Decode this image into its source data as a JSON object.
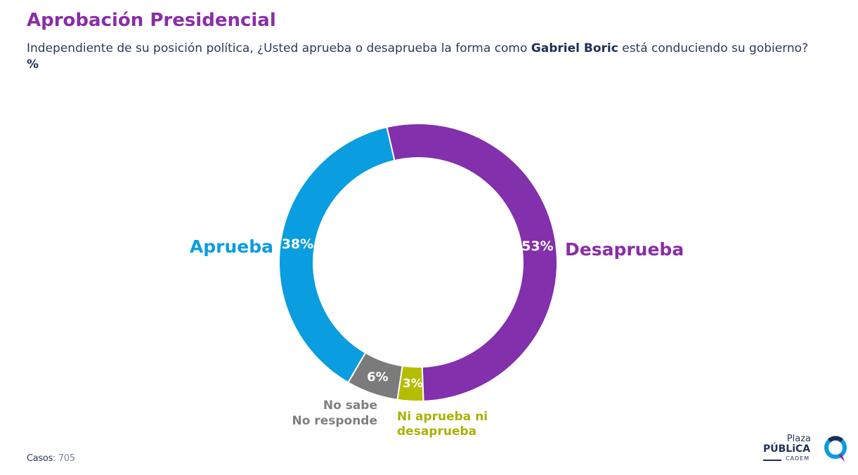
{
  "header": {
    "title": "Aprobación Presidencial",
    "subtitle_pre": "Independiente de su posición política, ¿Usted aprueba o desaprueba la forma como ",
    "subtitle_name": "Gabriel Boric",
    "subtitle_post": " está conduciendo su gobierno? ",
    "subtitle_unit": "%"
  },
  "chart_data": {
    "type": "pie",
    "donut": true,
    "categories": [
      "Desaprueba",
      "Ni aprueba ni desaprueba",
      "No sabe No responde",
      "Aprueba"
    ],
    "values": [
      53,
      3,
      6,
      38
    ],
    "value_labels": [
      "53%",
      "3%",
      "6%",
      "38%"
    ],
    "colors": [
      "#8230ab",
      "#b5bd00",
      "#7b7b7b",
      "#0a9de0"
    ],
    "legend_labels": [
      [
        "Desaprueba"
      ],
      [
        "Ni aprueba ni",
        "desaprueba"
      ],
      [
        "No sabe",
        "No responde"
      ],
      [
        "Aprueba"
      ]
    ],
    "label_colors": [
      "#8a2da8",
      "#a9b200",
      "#7f7f7f",
      "#0b9de0"
    ]
  },
  "footer": {
    "cases_label": "Casos",
    "cases_value": ": 705"
  },
  "logo": {
    "line1": "Plaza",
    "line2": "PÚBLiCA",
    "line3": "CADEM",
    "accent": "#0b9de0",
    "secondary": "#8a2da8"
  }
}
